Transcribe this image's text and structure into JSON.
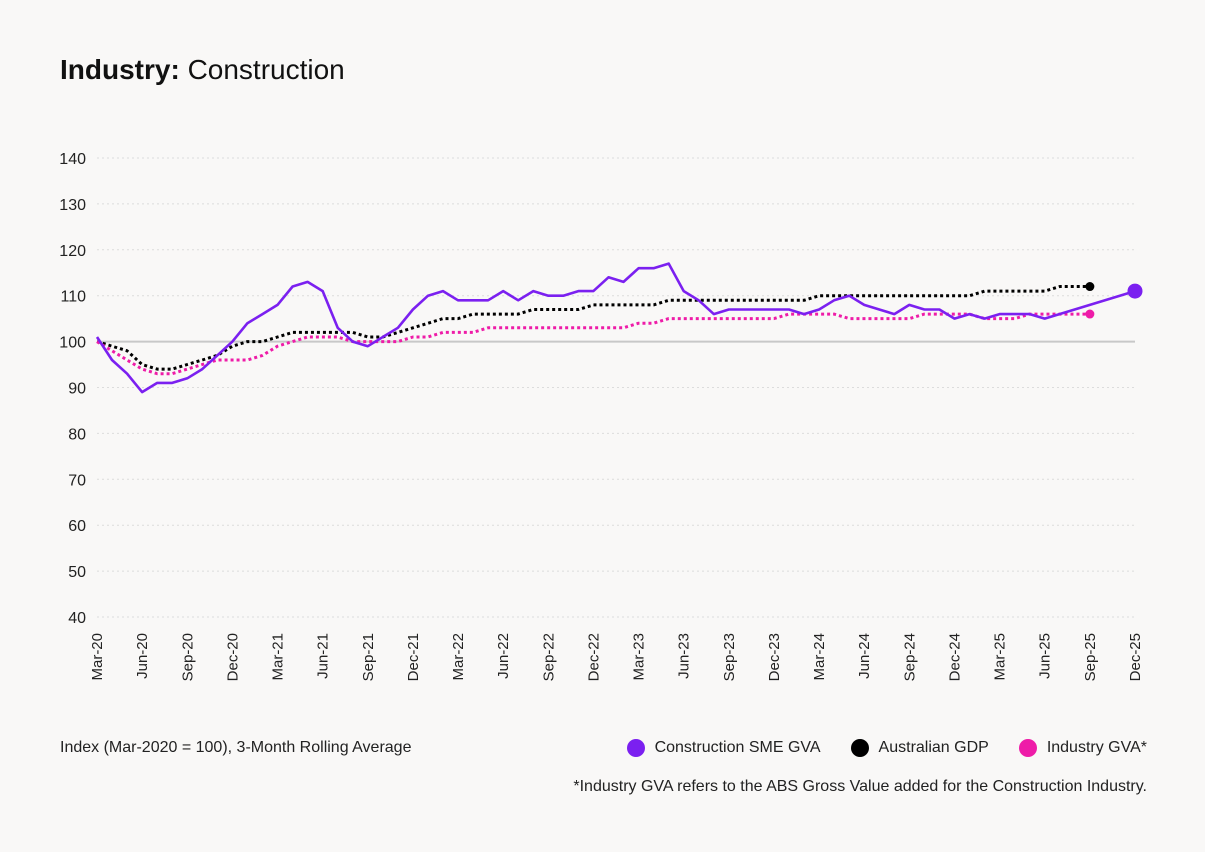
{
  "title": {
    "bold": "Industry:",
    "rest": "Construction"
  },
  "axis_note": "Index (Mar-2020 = 100), 3-Month Rolling Average",
  "footnote": "*Industry GVA refers to the ABS Gross Value added for the Construction Industry.",
  "legend": [
    {
      "label": "Construction SME GVA",
      "color": "#7b20f0"
    },
    {
      "label": "Australian GDP",
      "color": "#000000"
    },
    {
      "label": "Industry GVA*",
      "color": "#ee1ca8"
    }
  ],
  "chart_data": {
    "type": "line",
    "ylim": [
      40,
      140
    ],
    "yticks": [
      40,
      50,
      60,
      70,
      80,
      90,
      100,
      110,
      120,
      130,
      140
    ],
    "xlim": [
      0,
      69
    ],
    "x_tick_labels": [
      "Mar-20",
      "Jun-20",
      "Sep-20",
      "Dec-20",
      "Mar-21",
      "Jun-21",
      "Sep-21",
      "Dec-21",
      "Mar-22",
      "Jun-22",
      "Sep-22",
      "Dec-22",
      "Mar-23",
      "Jun-23",
      "Sep-23",
      "Dec-23",
      "Mar-24",
      "Jun-24",
      "Sep-24",
      "Dec-24",
      "Mar-25",
      "Jun-25",
      "Sep-25",
      "Dec-25"
    ],
    "reference_line": 100,
    "grid": "horizontal dotted",
    "series": [
      {
        "name": "Construction SME GVA",
        "color": "#7b20f0",
        "style": "solid",
        "x": [
          "Mar-20",
          "Apr-20",
          "May-20",
          "Jun-20",
          "Jul-20",
          "Aug-20",
          "Sep-20",
          "Oct-20",
          "Nov-20",
          "Dec-20",
          "Jan-21",
          "Feb-21",
          "Mar-21",
          "Apr-21",
          "May-21",
          "Jun-21",
          "Jul-21",
          "Aug-21",
          "Sep-21",
          "Oct-21",
          "Nov-21",
          "Dec-21",
          "Jan-22",
          "Feb-22",
          "Mar-22",
          "Apr-22",
          "May-22",
          "Jun-22",
          "Jul-22",
          "Aug-22",
          "Sep-22",
          "Oct-22",
          "Nov-22",
          "Dec-22",
          "Jan-23",
          "Feb-23",
          "Mar-23",
          "Apr-23",
          "May-23",
          "Jun-23",
          "Jul-23",
          "Aug-23",
          "Sep-23",
          "Oct-23",
          "Nov-23",
          "Dec-23",
          "Jan-24",
          "Feb-24",
          "Mar-24",
          "Apr-24",
          "May-24",
          "Jun-24",
          "Jul-24",
          "Aug-24",
          "Sep-24",
          "Oct-24",
          "Nov-24",
          "Dec-24",
          "Jan-25",
          "Feb-25",
          "Mar-25",
          "Apr-25",
          "May-25",
          "Jun-25",
          "Dec-25"
        ],
        "values": [
          101,
          96,
          93,
          89,
          91,
          91,
          92,
          94,
          97,
          100,
          104,
          106,
          108,
          112,
          113,
          111,
          103,
          100,
          99,
          101,
          103,
          107,
          110,
          111,
          109,
          109,
          109,
          111,
          109,
          111,
          110,
          110,
          111,
          111,
          114,
          113,
          116,
          116,
          117,
          111,
          109,
          106,
          107,
          107,
          107,
          107,
          107,
          106,
          107,
          109,
          110,
          108,
          107,
          106,
          108,
          107,
          107,
          105,
          106,
          105,
          106,
          106,
          106,
          105,
          111
        ],
        "marker_at_end": true
      },
      {
        "name": "Australian GDP",
        "color": "#000000",
        "style": "dotted",
        "x_range": [
          "Mar-20",
          "Sep-25"
        ],
        "values": [
          100,
          99,
          98,
          95,
          94,
          94,
          95,
          96,
          97,
          99,
          100,
          100,
          101,
          102,
          102,
          102,
          102,
          102,
          101,
          101,
          102,
          103,
          104,
          105,
          105,
          106,
          106,
          106,
          106,
          107,
          107,
          107,
          107,
          108,
          108,
          108,
          108,
          108,
          109,
          109,
          109,
          109,
          109,
          109,
          109,
          109,
          109,
          109,
          110,
          110,
          110,
          110,
          110,
          110,
          110,
          110,
          110,
          110,
          110,
          111,
          111,
          111,
          111,
          111,
          112,
          112,
          112
        ],
        "marker_at_end": true
      },
      {
        "name": "Industry GVA*",
        "color": "#ee1ca8",
        "style": "dotted",
        "x_range": [
          "Mar-20",
          "Sep-25"
        ],
        "values": [
          100,
          98,
          96,
          94,
          93,
          93,
          94,
          95,
          96,
          96,
          96,
          97,
          99,
          100,
          101,
          101,
          101,
          100,
          100,
          100,
          100,
          101,
          101,
          102,
          102,
          102,
          103,
          103,
          103,
          103,
          103,
          103,
          103,
          103,
          103,
          103,
          104,
          104,
          105,
          105,
          105,
          105,
          105,
          105,
          105,
          105,
          106,
          106,
          106,
          106,
          105,
          105,
          105,
          105,
          105,
          106,
          106,
          106,
          106,
          105,
          105,
          105,
          106,
          106,
          106,
          106,
          106
        ],
        "marker_at_end": true
      }
    ]
  }
}
